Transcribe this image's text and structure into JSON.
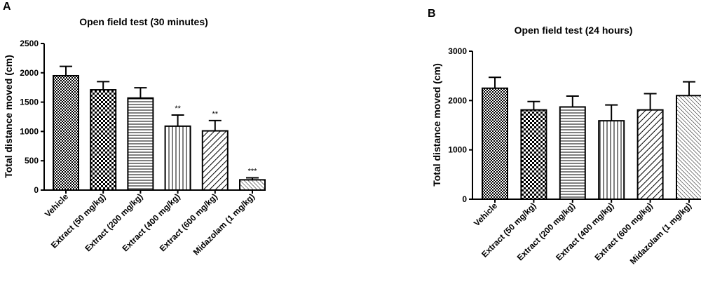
{
  "chart_data": [
    {
      "panel": "A",
      "type": "bar",
      "title": "Open field test (30 minutes)",
      "xlabel": "",
      "ylabel": "Total distance moved (cm)",
      "ylim": [
        0,
        2500
      ],
      "yticks": [
        0,
        500,
        1000,
        1500,
        2000,
        2500
      ],
      "categories": [
        "Vehicle",
        "Extract (50 mg/kg)",
        "Extract (200 mg/kg)",
        "Extract (400 mg/kg)",
        "Extract (600 mg/kg)",
        "Midazolam (1 mg/kg)"
      ],
      "values": [
        1950,
        1710,
        1570,
        1090,
        1010,
        175
      ],
      "error": [
        160,
        140,
        175,
        190,
        175,
        35
      ],
      "annotations": [
        "",
        "",
        "",
        "**",
        "**",
        "***"
      ],
      "patterns": [
        "dense-dots",
        "checker",
        "horizontal",
        "vertical",
        "diagonal-bold",
        "diagonal-fine"
      ],
      "grid": false
    },
    {
      "panel": "B",
      "type": "bar",
      "title": "Open field test (24 hours)",
      "xlabel": "",
      "ylabel": "Total distance moved (cm)",
      "ylim": [
        0,
        3000
      ],
      "yticks": [
        0,
        1000,
        2000,
        3000
      ],
      "categories": [
        "Vehicle",
        "Extract (50 mg/kg)",
        "Extract (200 mg/kg)",
        "Extract (400 mg/kg)",
        "Extract (600 mg/kg)",
        "Midazolam (1 mg/kg)"
      ],
      "values": [
        2250,
        1810,
        1870,
        1590,
        1810,
        2100
      ],
      "error": [
        220,
        170,
        220,
        320,
        330,
        280
      ],
      "annotations": [
        "",
        "",
        "",
        "",
        "",
        ""
      ],
      "patterns": [
        "dense-dots",
        "checker",
        "horizontal",
        "vertical",
        "diagonal-bold",
        "diagonal-fine"
      ],
      "grid": false
    }
  ]
}
